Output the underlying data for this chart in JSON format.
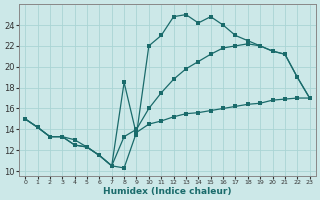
{
  "xlabel": "Humidex (Indice chaleur)",
  "bg_color": "#cce8e8",
  "grid_color": "#aad4d4",
  "line_color": "#1a6b6b",
  "xlim": [
    -0.5,
    23.5
  ],
  "ylim": [
    9.5,
    26.0
  ],
  "xticks": [
    0,
    1,
    2,
    3,
    4,
    5,
    6,
    7,
    8,
    9,
    10,
    11,
    12,
    13,
    14,
    15,
    16,
    17,
    18,
    19,
    20,
    21,
    22,
    23
  ],
  "yticks": [
    10,
    12,
    14,
    16,
    18,
    20,
    22,
    24
  ],
  "line1_x": [
    0,
    1,
    2,
    3,
    4,
    5,
    6,
    7,
    8,
    9,
    10,
    11,
    12,
    13,
    14,
    15,
    16,
    17,
    18,
    19,
    20,
    21,
    22,
    23
  ],
  "line1_y": [
    15.0,
    14.2,
    13.3,
    13.3,
    13.0,
    12.3,
    11.5,
    10.5,
    10.3,
    13.7,
    14.5,
    14.8,
    15.2,
    15.5,
    15.6,
    15.8,
    16.0,
    16.2,
    16.4,
    16.5,
    16.8,
    16.9,
    17.0,
    17.0
  ],
  "line2_x": [
    0,
    1,
    2,
    3,
    4,
    5,
    6,
    7,
    8,
    9,
    10,
    11,
    12,
    13,
    14,
    15,
    16,
    17,
    18,
    19,
    20,
    21,
    22,
    23
  ],
  "line2_y": [
    15.0,
    14.2,
    13.3,
    13.3,
    12.5,
    12.3,
    11.5,
    10.5,
    18.5,
    13.5,
    22.0,
    23.0,
    24.8,
    25.0,
    24.2,
    24.8,
    24.0,
    23.0,
    22.5,
    22.0,
    21.5,
    21.2,
    19.0,
    17.0
  ],
  "line3_x": [
    0,
    1,
    2,
    3,
    4,
    5,
    6,
    7,
    8,
    9,
    10,
    11,
    12,
    13,
    14,
    15,
    16,
    17,
    18,
    19,
    20,
    21,
    22,
    23
  ],
  "line3_y": [
    15.0,
    14.2,
    13.3,
    13.3,
    12.5,
    12.3,
    11.5,
    10.5,
    13.3,
    14.0,
    16.0,
    17.5,
    18.8,
    19.8,
    20.5,
    21.2,
    21.8,
    22.0,
    22.2,
    22.0,
    21.5,
    21.2,
    19.0,
    17.0
  ]
}
